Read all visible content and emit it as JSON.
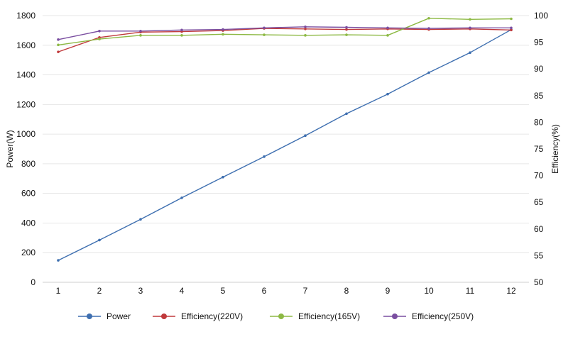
{
  "chart_data": {
    "type": "line",
    "categories": [
      1,
      2,
      3,
      4,
      5,
      6,
      7,
      8,
      9,
      10,
      11,
      12
    ],
    "y_left": {
      "label": "Power(W)",
      "ylim": [
        0,
        1800
      ],
      "ticks": [
        0,
        200,
        400,
        600,
        800,
        1000,
        1200,
        1400,
        1600,
        1800
      ]
    },
    "y_right": {
      "label": "Efficiency(%)",
      "ylim": [
        50,
        100
      ],
      "ticks": [
        50,
        55,
        60,
        65,
        70,
        75,
        80,
        85,
        90,
        95,
        100
      ]
    },
    "grid": true,
    "legend_position": "bottom",
    "series": [
      {
        "name": "Power",
        "axis": "left",
        "color": "#3e6fb0",
        "values": [
          148,
          285,
          425,
          570,
          710,
          848,
          990,
          1138,
          1270,
          1415,
          1550,
          1705
        ]
      },
      {
        "name": "Efficiency(220V)",
        "axis": "right",
        "color": "#c0393b",
        "values": [
          93.2,
          95.9,
          96.9,
          97.0,
          97.2,
          97.6,
          97.5,
          97.4,
          97.5,
          97.4,
          97.5,
          97.3
        ]
      },
      {
        "name": "Efficiency(165V)",
        "axis": "right",
        "color": "#8db944",
        "values": [
          94.5,
          95.6,
          96.3,
          96.3,
          96.5,
          96.4,
          96.3,
          96.4,
          96.3,
          99.5,
          99.3,
          99.4
        ]
      },
      {
        "name": "Efficiency(250V)",
        "axis": "right",
        "color": "#7a4ea0",
        "values": [
          95.5,
          97.1,
          97.1,
          97.3,
          97.4,
          97.7,
          97.9,
          97.8,
          97.7,
          97.6,
          97.7,
          97.7
        ]
      }
    ]
  }
}
